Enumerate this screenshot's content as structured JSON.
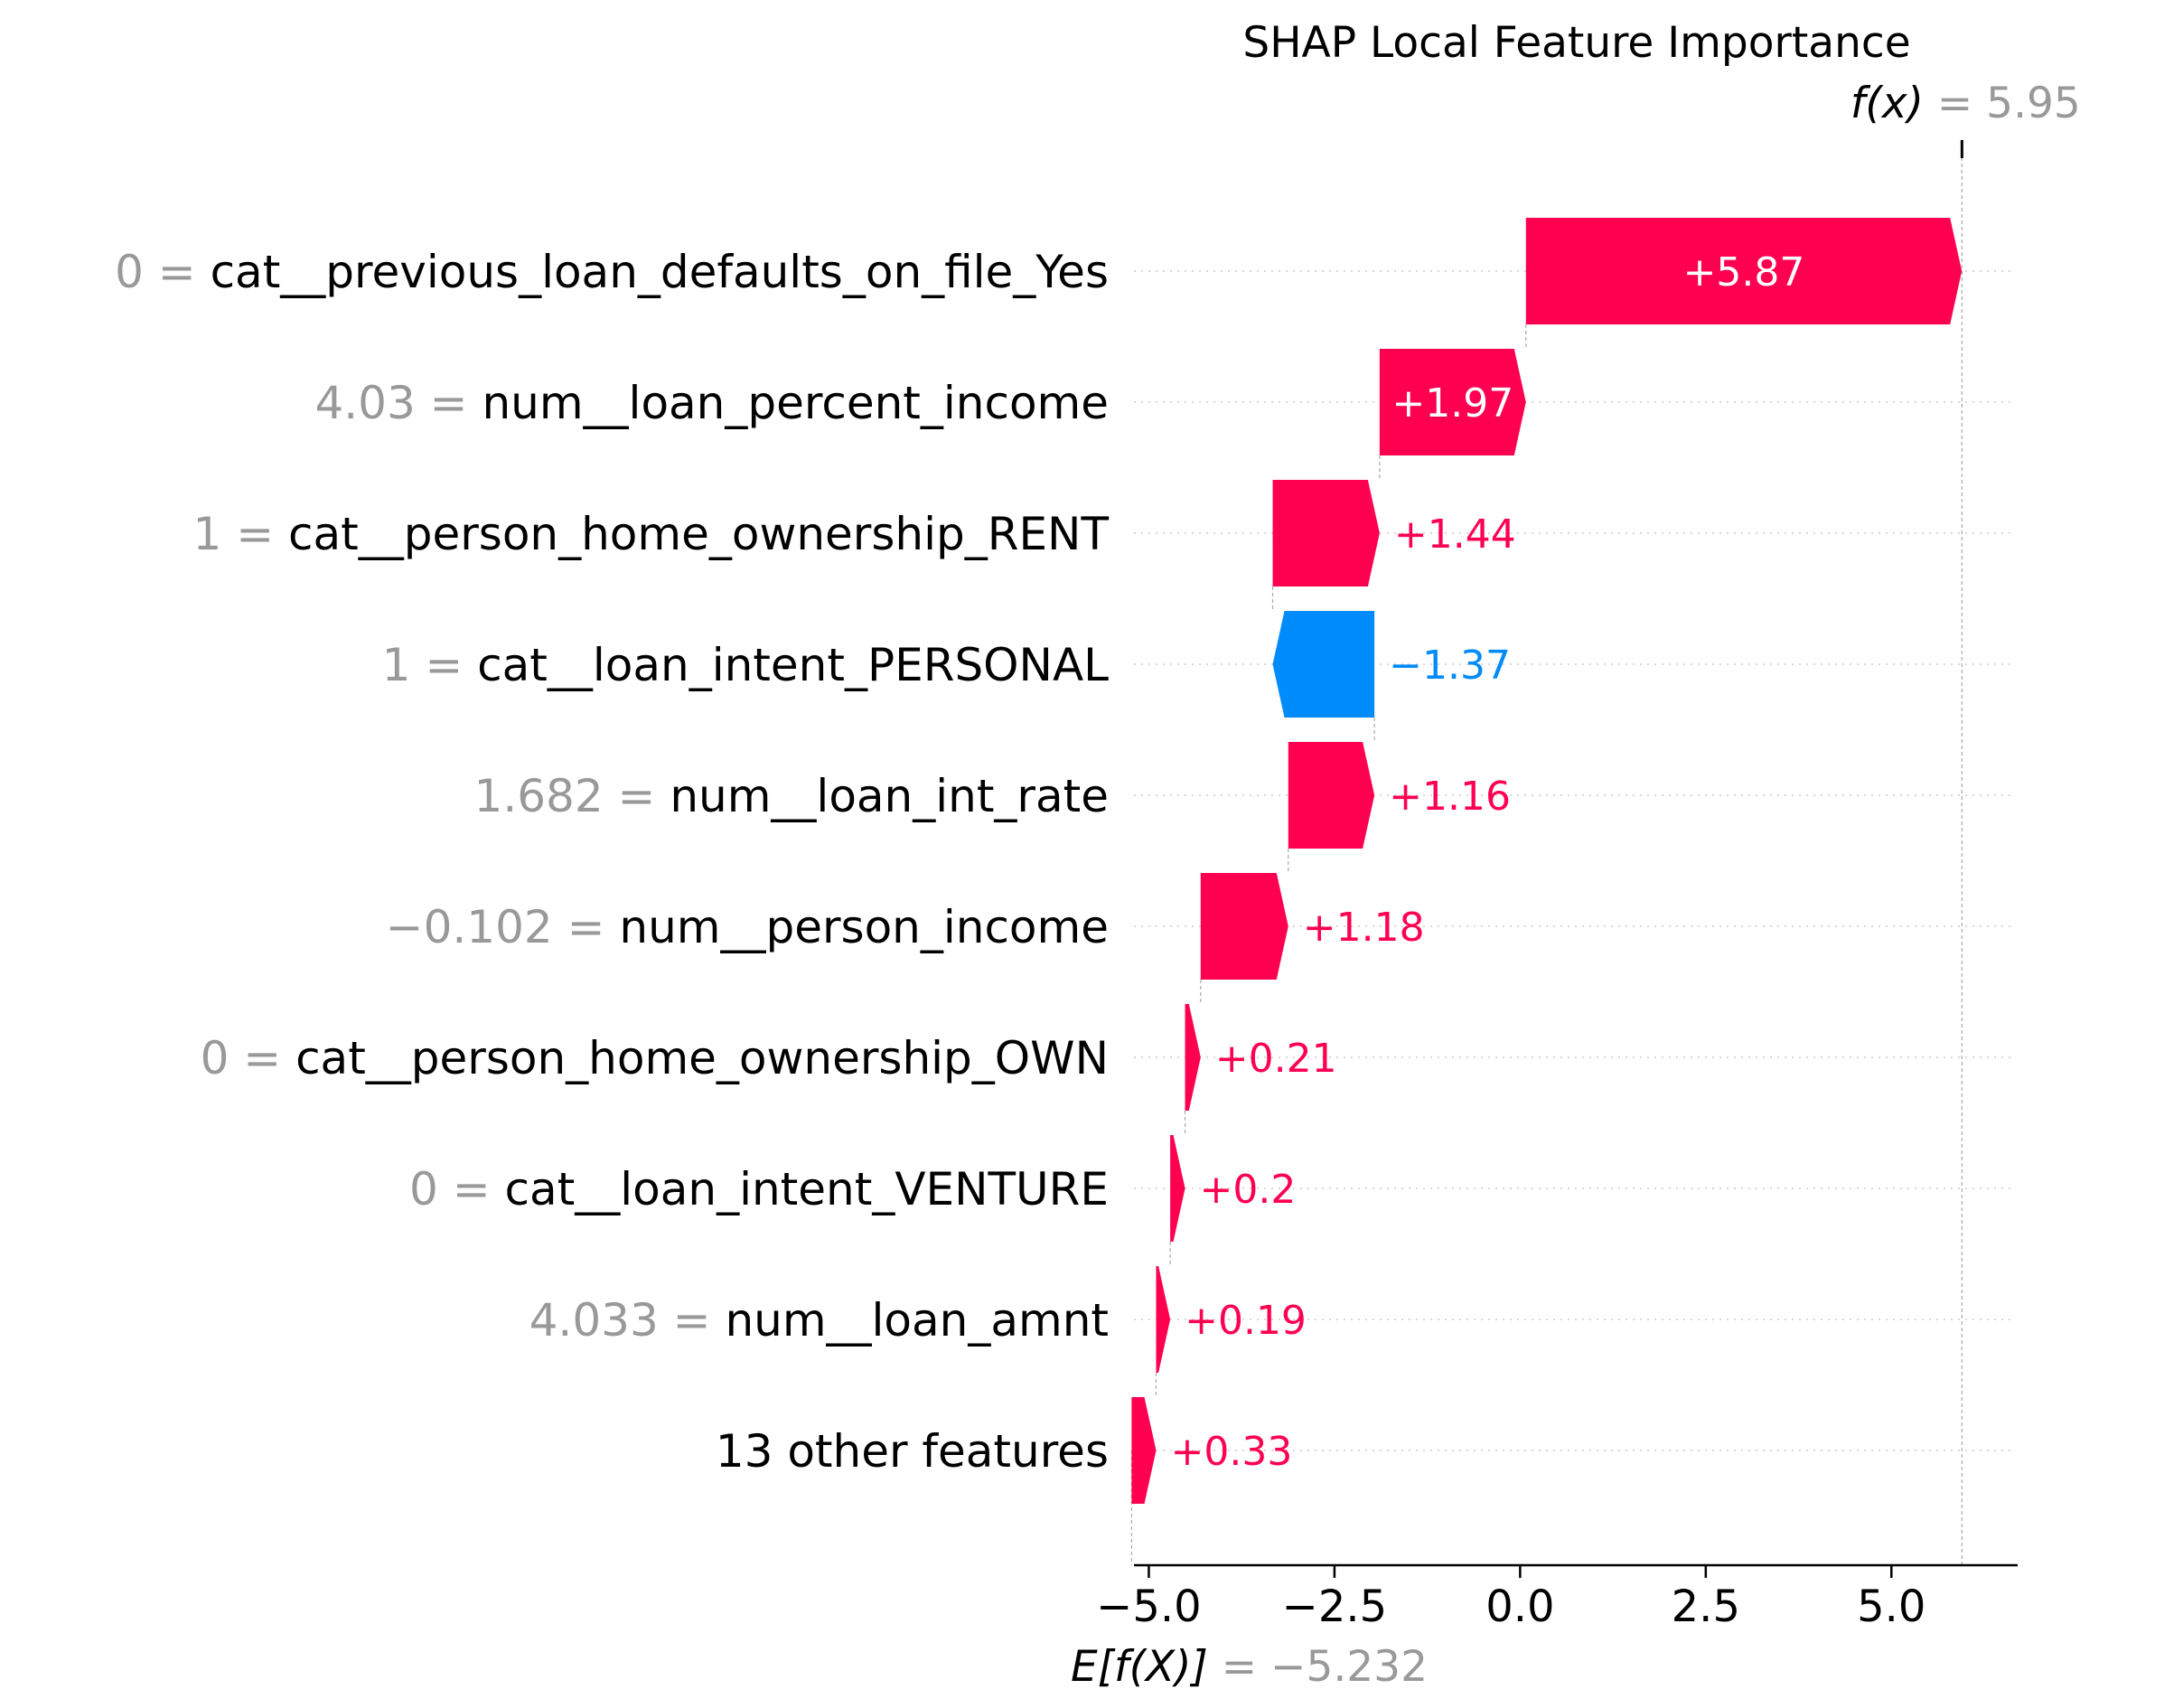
{
  "chart_data": {
    "type": "bar",
    "subtype": "shap-waterfall",
    "title": "SHAP Local Feature Importance",
    "fx_label": "f(x)",
    "fx_value": "5.95",
    "ex_label": "E[f(X)]",
    "ex_value": "−5.232",
    "base_value": -5.232,
    "final_value": 5.95,
    "xlim": [
      -5.2,
      6.7
    ],
    "xticks": [
      -5.0,
      -2.5,
      0.0,
      2.5,
      5.0
    ],
    "xtick_labels": [
      "−5.0",
      "−2.5",
      "0.0",
      "2.5",
      "5.0"
    ],
    "grid": "dotted horizontal row lines",
    "features": [
      {
        "value": "0",
        "name": "cat__previous_loan_defaults_on_file_Yes",
        "shap": 5.87,
        "label": "+5.87"
      },
      {
        "value": "4.03",
        "name": "num__loan_percent_income",
        "shap": 1.97,
        "label": "+1.97"
      },
      {
        "value": "1",
        "name": "cat__person_home_ownership_RENT",
        "shap": 1.44,
        "label": "+1.44"
      },
      {
        "value": "1",
        "name": "cat__loan_intent_PERSONAL",
        "shap": -1.37,
        "label": "−1.37"
      },
      {
        "value": "1.682",
        "name": "num__loan_int_rate",
        "shap": 1.16,
        "label": "+1.16"
      },
      {
        "value": "−0.102",
        "name": "num__person_income",
        "shap": 1.18,
        "label": "+1.18"
      },
      {
        "value": "0",
        "name": "cat__person_home_ownership_OWN",
        "shap": 0.21,
        "label": "+0.21"
      },
      {
        "value": "0",
        "name": "cat__loan_intent_VENTURE",
        "shap": 0.2,
        "label": "+0.2"
      },
      {
        "value": "4.033",
        "name": "num__loan_amnt",
        "shap": 0.19,
        "label": "+0.19"
      },
      {
        "value": "",
        "name": "13 other features",
        "shap": 0.33,
        "label": "+0.33"
      }
    ],
    "colors": {
      "positive": "#ff0051",
      "negative": "#008bfb",
      "feature_value": "#999999",
      "text": "#000000",
      "grid": "#cccccc"
    }
  }
}
